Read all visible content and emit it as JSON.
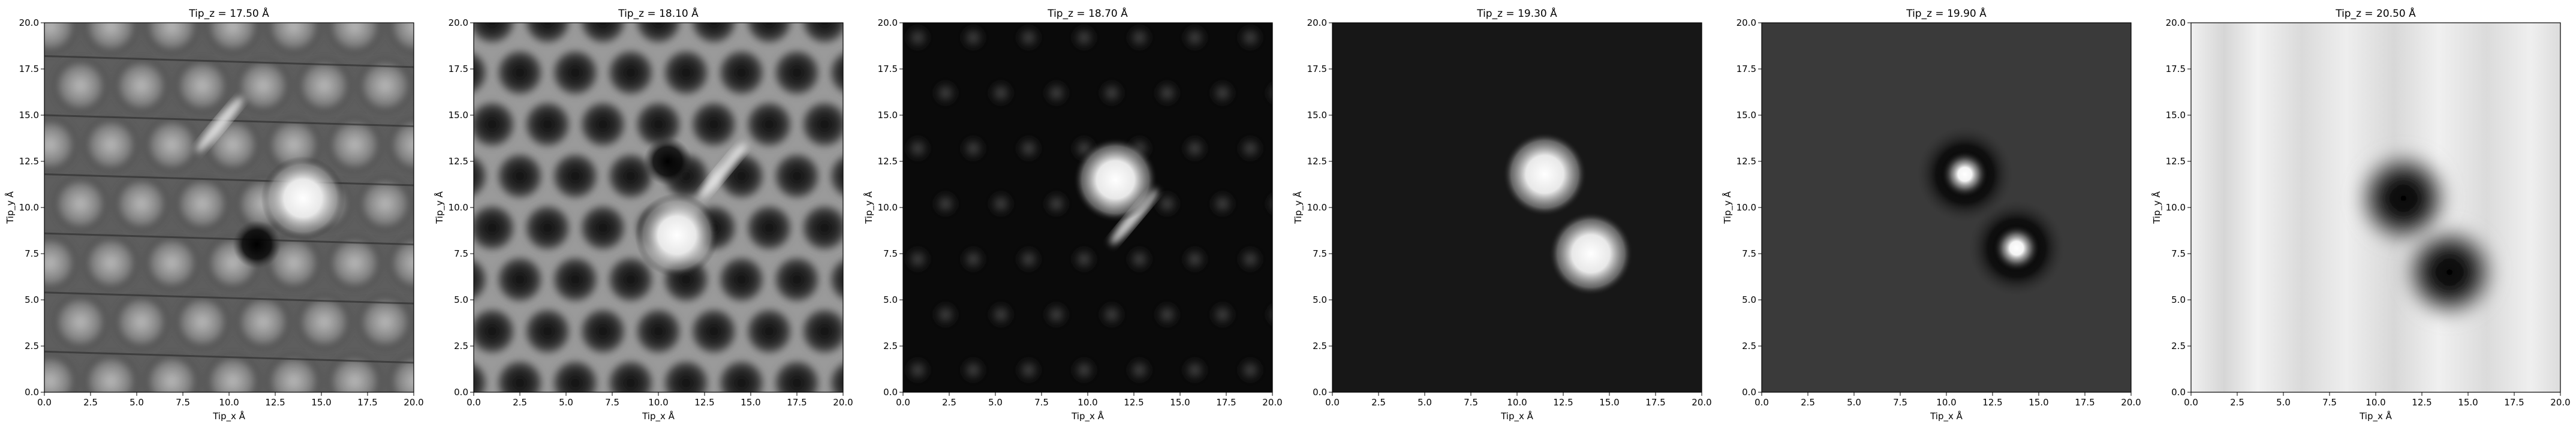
{
  "chart_data": [
    {
      "type": "heatmap",
      "title": "Tip_z = 17.50 Å",
      "xlabel": "Tip_x Å",
      "ylabel": "Tip_y Å",
      "xlim": [
        0,
        20
      ],
      "ylim": [
        0,
        20
      ],
      "xticks": [
        "0.0",
        "2.5",
        "5.0",
        "7.5",
        "10.0",
        "12.5",
        "15.0",
        "17.5",
        "20.0"
      ],
      "yticks": [
        "0.0",
        "2.5",
        "5.0",
        "7.5",
        "10.0",
        "12.5",
        "15.0",
        "17.5",
        "20.0"
      ],
      "colormap": "gray",
      "pattern": "polygonal-cells-bright",
      "features": [
        {
          "x": 14.0,
          "y": 10.5,
          "kind": "bright-blob"
        },
        {
          "x": 9.5,
          "y": 14.5,
          "kind": "bright-streak"
        },
        {
          "x": 11.5,
          "y": 8.0,
          "kind": "dark-spot"
        }
      ]
    },
    {
      "type": "heatmap",
      "title": "Tip_z = 18.10 Å",
      "xlabel": "Tip_x Å",
      "ylabel": "Tip_y Å",
      "xlim": [
        0,
        20
      ],
      "ylim": [
        0,
        20
      ],
      "xticks": [
        "0.0",
        "2.5",
        "5.0",
        "7.5",
        "10.0",
        "12.5",
        "15.0",
        "17.5",
        "20.0"
      ],
      "yticks": [
        "0.0",
        "2.5",
        "5.0",
        "7.5",
        "10.0",
        "12.5",
        "15.0",
        "17.5",
        "20.0"
      ],
      "colormap": "gray",
      "pattern": "hexagonal-network-bright-edges",
      "features": [
        {
          "x": 11.0,
          "y": 8.5,
          "kind": "bright-blob"
        },
        {
          "x": 13.5,
          "y": 12.0,
          "kind": "bright-streak"
        },
        {
          "x": 10.5,
          "y": 12.5,
          "kind": "dark-spot"
        }
      ]
    },
    {
      "type": "heatmap",
      "title": "Tip_z = 18.70 Å",
      "xlabel": "Tip_x Å",
      "ylabel": "Tip_y Å",
      "xlim": [
        0,
        20
      ],
      "ylim": [
        0,
        20
      ],
      "xticks": [
        "0.0",
        "2.5",
        "5.0",
        "7.5",
        "10.0",
        "12.5",
        "15.0",
        "17.5",
        "20.0"
      ],
      "yticks": [
        "0.0",
        "2.5",
        "5.0",
        "7.5",
        "10.0",
        "12.5",
        "15.0",
        "17.5",
        "20.0"
      ],
      "colormap": "gray",
      "pattern": "faint-spots-dark",
      "features": [
        {
          "x": 12.5,
          "y": 9.5,
          "kind": "bright-streak"
        },
        {
          "x": 11.5,
          "y": 11.5,
          "kind": "bright-blob"
        }
      ]
    },
    {
      "type": "heatmap",
      "title": "Tip_z = 19.30 Å",
      "xlabel": "Tip_x Å",
      "ylabel": "Tip_y Å",
      "xlim": [
        0,
        20
      ],
      "ylim": [
        0,
        20
      ],
      "xticks": [
        "0.0",
        "2.5",
        "5.0",
        "7.5",
        "10.0",
        "12.5",
        "15.0",
        "17.5",
        "20.0"
      ],
      "yticks": [
        "0.0",
        "2.5",
        "5.0",
        "7.5",
        "10.0",
        "12.5",
        "15.0",
        "17.5",
        "20.0"
      ],
      "colormap": "gray",
      "pattern": "dark-uniform",
      "features": [
        {
          "x": 11.5,
          "y": 11.8,
          "kind": "bright-blob"
        },
        {
          "x": 14.0,
          "y": 7.5,
          "kind": "bright-blob"
        }
      ]
    },
    {
      "type": "heatmap",
      "title": "Tip_z = 19.90 Å",
      "xlabel": "Tip_x Å",
      "ylabel": "Tip_y Å",
      "xlim": [
        0,
        20
      ],
      "ylim": [
        0,
        20
      ],
      "xticks": [
        "0.0",
        "2.5",
        "5.0",
        "7.5",
        "10.0",
        "12.5",
        "15.0",
        "17.5",
        "20.0"
      ],
      "yticks": [
        "0.0",
        "2.5",
        "5.0",
        "7.5",
        "10.0",
        "12.5",
        "15.0",
        "17.5",
        "20.0"
      ],
      "colormap": "gray",
      "pattern": "dark-gray-uniform",
      "features": [
        {
          "x": 11.0,
          "y": 11.8,
          "kind": "bright-spot-with-dark-halo"
        },
        {
          "x": 13.8,
          "y": 7.8,
          "kind": "bright-spot-with-dark-halo"
        }
      ]
    },
    {
      "type": "heatmap",
      "title": "Tip_z = 20.50 Å",
      "xlabel": "Tip_x Å",
      "ylabel": "Tip_y Å",
      "xlim": [
        0,
        20
      ],
      "ylim": [
        0,
        20
      ],
      "xticks": [
        "0.0",
        "2.5",
        "5.0",
        "7.5",
        "10.0",
        "12.5",
        "15.0",
        "17.5",
        "20.0"
      ],
      "yticks": [
        "0.0",
        "2.5",
        "5.0",
        "7.5",
        "10.0",
        "12.5",
        "15.0",
        "17.5",
        "20.0"
      ],
      "colormap": "gray",
      "pattern": "light-stripes",
      "features": [
        {
          "x": 11.5,
          "y": 10.5,
          "kind": "dark-blob"
        },
        {
          "x": 14.0,
          "y": 6.5,
          "kind": "dark-blob"
        }
      ]
    }
  ]
}
